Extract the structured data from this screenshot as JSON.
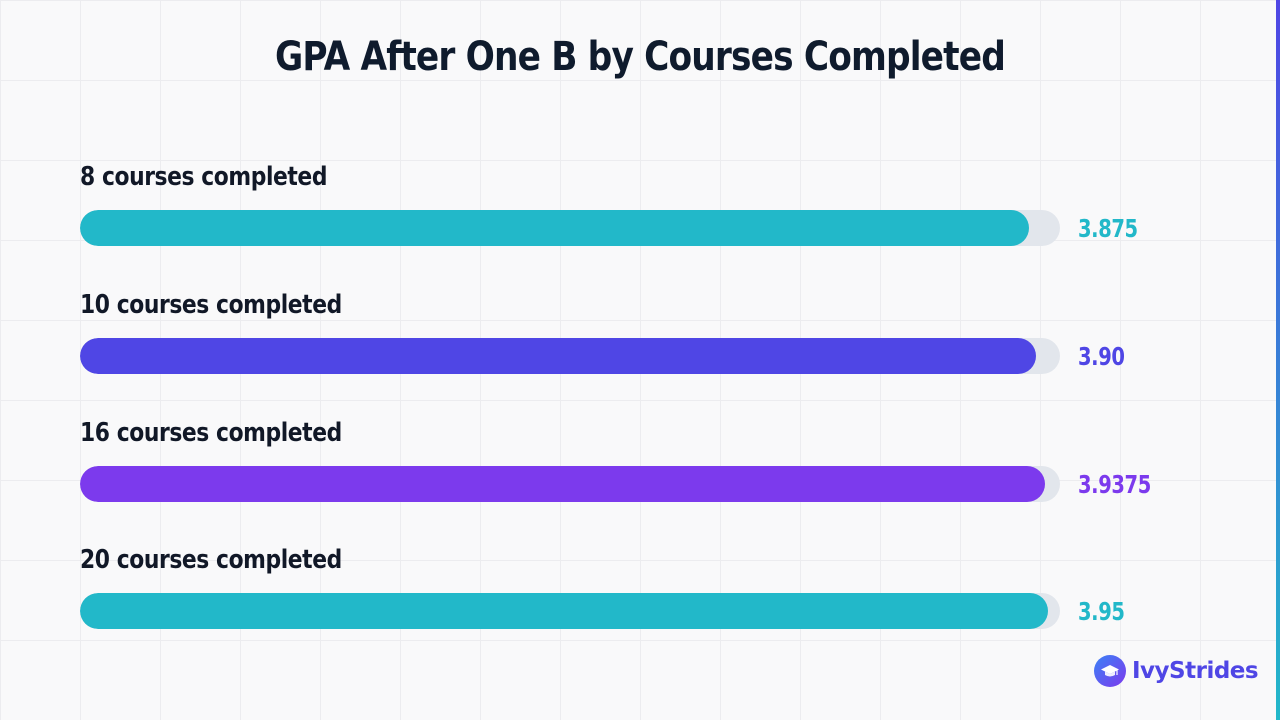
{
  "chart_data": {
    "type": "bar",
    "orientation": "horizontal",
    "title": "GPA After One B by Courses Completed",
    "categories": [
      "8 courses completed",
      "10 courses completed",
      "16 courses completed",
      "20 courses completed"
    ],
    "values": [
      3.875,
      3.9,
      3.9375,
      3.95
    ],
    "value_labels": [
      "3.875",
      "3.90",
      "3.9375",
      "3.95"
    ],
    "xlim": [
      0,
      4
    ],
    "bar_colors": [
      "#22b8c9",
      "#4f46e5",
      "#7c3aed",
      "#22b8c9"
    ],
    "grid": true,
    "legend": "none"
  },
  "brand": {
    "name": "IvyStrides",
    "logo_icon": "graduation-cap-icon",
    "text_color": "#4f46e5"
  }
}
